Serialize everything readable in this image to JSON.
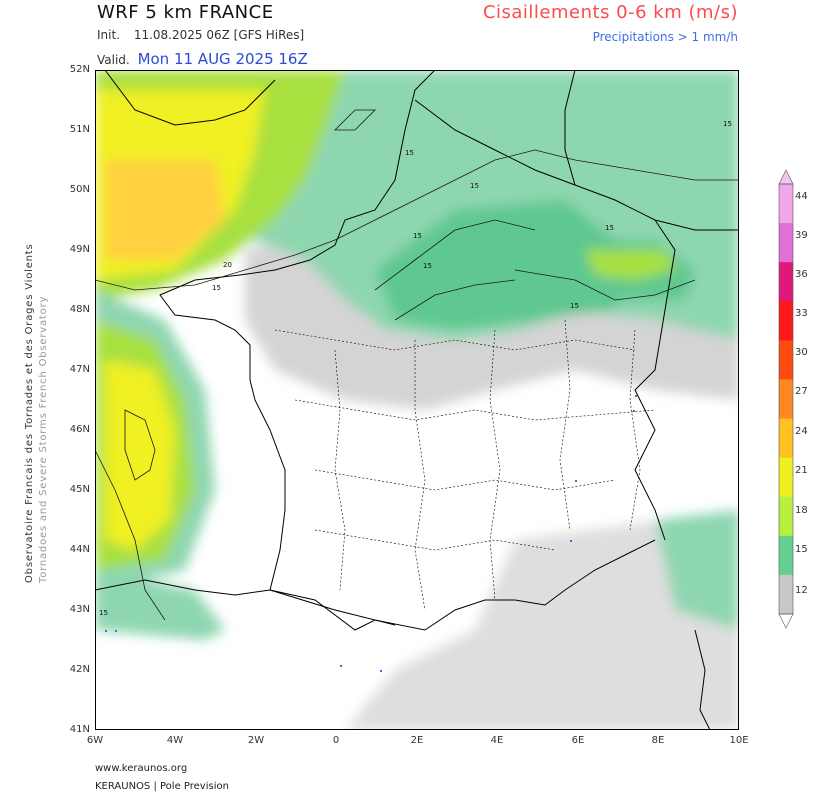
{
  "header": {
    "title": "WRF 5 km FRANCE",
    "init_label": "Init.",
    "init_value": "11.08.2025 06Z [GFS HiRes]",
    "valid_label": "Valid.",
    "valid_value": "Mon 11 AUG 2025 16Z",
    "parameter": "Cisaillements 0-6 km (m/s)",
    "precip_note": "Precipitations > 1 mm/h"
  },
  "side": {
    "org_fr": "Observatoire Francais des Tornades et des Orages Violents",
    "org_en": "Tornadoes and Severe Storms French Observatory"
  },
  "footer": {
    "url": "www.keraunos.org",
    "credit": "KERAUNOS | Pole Prevision"
  },
  "axes": {
    "lat_labels": [
      "52N",
      "51N",
      "50N",
      "49N",
      "48N",
      "47N",
      "46N",
      "45N",
      "44N",
      "43N",
      "42N",
      "41N"
    ],
    "lon_labels": [
      "6W",
      "4W",
      "2W",
      "0",
      "2E",
      "4E",
      "6E",
      "8E",
      "10E"
    ]
  },
  "contours": {
    "labels": [
      "15",
      "15",
      "15",
      "15",
      "15",
      "15",
      "20",
      "15",
      "15",
      "15"
    ]
  },
  "colorbar": {
    "labels": [
      "44",
      "39",
      "36",
      "33",
      "30",
      "27",
      "24",
      "21",
      "18",
      "15",
      "12"
    ],
    "colors": [
      "#f0a8e8",
      "#e070d8",
      "#e0187c",
      "#ff1818",
      "#ff4a10",
      "#ff8820",
      "#ffc020",
      "#f0f020",
      "#b8f040",
      "#66d090",
      "#c8c8c8"
    ]
  },
  "colors": {
    "shear_12": "#d0d0d0",
    "shear_15": "#8ed6b0",
    "shear_18": "#4cc080",
    "shear_21": "#a8e040",
    "shear_24": "#f0f020",
    "shear_27": "#ffd040",
    "title": "#111111",
    "param": "#ff4a4a",
    "valid": "#2b4bd8",
    "precip": "#3d6ee8"
  }
}
